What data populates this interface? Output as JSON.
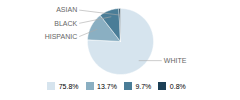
{
  "chart_data": {
    "type": "pie",
    "categories": [
      "WHITE",
      "HISPANIC",
      "BLACK",
      "ASIAN"
    ],
    "values": [
      75.8,
      13.7,
      9.7,
      0.8
    ],
    "value_labels": [
      "75.8%",
      "13.7%",
      "9.7%",
      "0.8%"
    ],
    "colors": [
      "#d6e4ee",
      "#8aafc2",
      "#4a7d97",
      "#1c3f55"
    ],
    "legend": "bottom"
  }
}
